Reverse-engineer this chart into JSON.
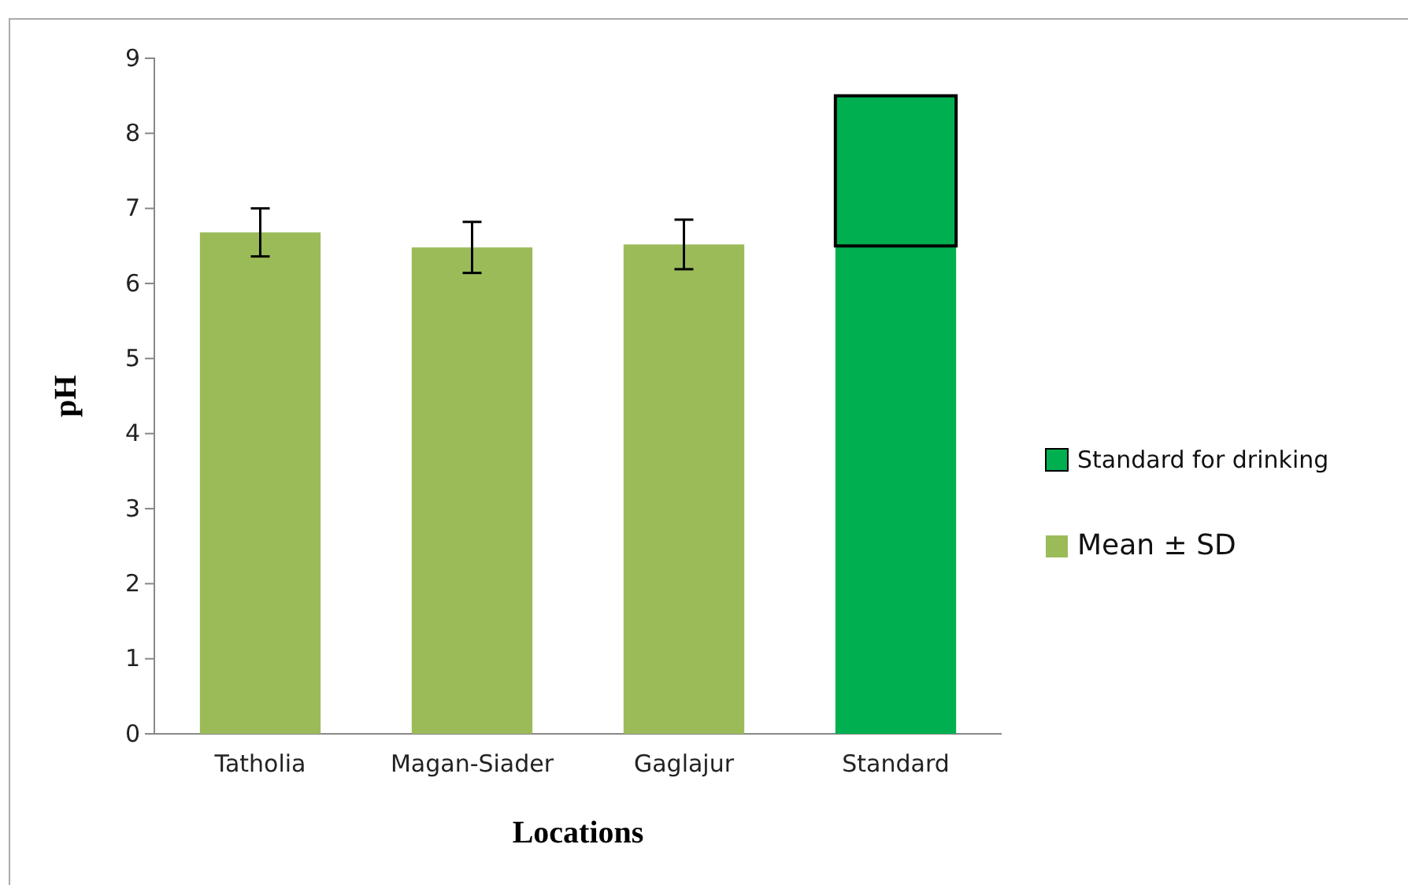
{
  "chart_data": {
    "type": "bar",
    "xlabel": "Locations",
    "ylabel": "pH",
    "categories": [
      "Tatholia",
      "Magan-Siader",
      "Gaglajur",
      "Standard"
    ],
    "stacked": true,
    "ylim": [
      0,
      9
    ],
    "yticks": [
      0,
      1,
      2,
      3,
      4,
      5,
      6,
      7,
      8,
      9
    ],
    "grid": false,
    "legend": "right",
    "series": [
      {
        "name": "Mean ± SD",
        "color": "#9bbb59",
        "values": [
          6.68,
          6.48,
          6.52,
          null
        ],
        "errors": [
          0.32,
          0.34,
          0.33,
          null
        ]
      },
      {
        "color": "#00b050",
        "values": [
          null,
          null,
          null,
          6.5
        ]
      },
      {
        "name": "Standard for drinking",
        "color": "#00b050",
        "values": [
          null,
          null,
          null,
          2
        ]
      }
    ]
  }
}
